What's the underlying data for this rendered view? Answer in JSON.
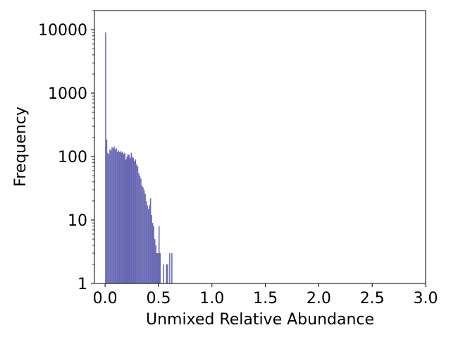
{
  "chart_data": {
    "type": "bar",
    "subtype": "histogram",
    "title": "",
    "xlabel": "Unmixed Relative Abundance",
    "ylabel": "Frequency",
    "xlim": [
      -0.1,
      3.0
    ],
    "ylim": [
      1,
      20000
    ],
    "yscale": "log",
    "grid": false,
    "bin_width": 0.01,
    "bar_color": "#6666b3",
    "xticks": [
      0.0,
      0.5,
      1.0,
      1.5,
      2.0,
      2.5,
      3.0
    ],
    "xtick_labels": [
      "0.0",
      "0.5",
      "1.0",
      "1.5",
      "2.0",
      "2.5",
      "3.0"
    ],
    "yticks": [
      1,
      10,
      100,
      1000,
      10000
    ],
    "ytick_labels": [
      "1",
      "10",
      "100",
      "1000",
      "10000"
    ],
    "bin_starts": [
      0.0,
      0.01,
      0.02,
      0.03,
      0.04,
      0.05,
      0.06,
      0.07,
      0.08,
      0.09,
      0.1,
      0.11,
      0.12,
      0.13,
      0.14,
      0.15,
      0.16,
      0.17,
      0.18,
      0.19,
      0.2,
      0.21,
      0.22,
      0.23,
      0.24,
      0.25,
      0.26,
      0.27,
      0.28,
      0.29,
      0.3,
      0.31,
      0.32,
      0.33,
      0.34,
      0.35,
      0.36,
      0.37,
      0.38,
      0.39,
      0.4,
      0.41,
      0.42,
      0.43,
      0.44,
      0.45,
      0.46,
      0.47,
      0.48,
      0.49,
      0.5,
      0.51,
      0.52,
      0.53,
      0.54,
      0.55,
      0.56,
      0.57,
      0.58,
      0.59,
      0.6,
      0.61,
      0.62,
      0.63,
      0.64
    ],
    "counts": [
      9000,
      185,
      115,
      110,
      130,
      125,
      140,
      135,
      145,
      130,
      135,
      120,
      125,
      118,
      122,
      115,
      120,
      110,
      115,
      90,
      100,
      110,
      105,
      95,
      115,
      100,
      95,
      85,
      90,
      75,
      70,
      55,
      50,
      45,
      35,
      33,
      30,
      26,
      20,
      17,
      15,
      17,
      22,
      12,
      9,
      8,
      5,
      4,
      3,
      3,
      8,
      3,
      0,
      0,
      2,
      0,
      0,
      2,
      2,
      0,
      3,
      0,
      3,
      0,
      0
    ]
  }
}
